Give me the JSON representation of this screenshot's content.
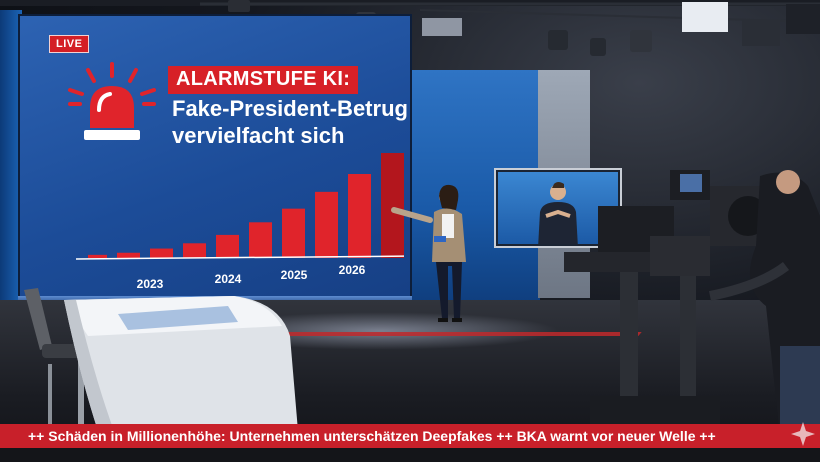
{
  "wall": {
    "live_badge": "LIVE",
    "headline_tag": "ALARMSTUFE KI:",
    "headline_line1": "Fake-President-Betrug",
    "headline_line2": "vervielfacht sich"
  },
  "chart_data": {
    "type": "bar",
    "title": "",
    "x_tick_labels": [
      "2023",
      "2024",
      "2025",
      "2026"
    ],
    "values": [
      3,
      5,
      9,
      14,
      22,
      34,
      47,
      63,
      80,
      100
    ],
    "ylim": [
      0,
      100
    ],
    "colors": {
      "bar": "#e0242b",
      "bar_highlight": "#b3161d",
      "axis": "#ffffff"
    }
  },
  "ticker": {
    "text": "++  Schäden in Millionenhöhe: Unternehmen unterschätzen Deepfakes  ++  BKA warnt vor neuer Welle  ++"
  },
  "colors": {
    "wall_blue": "#1c4c98",
    "accent_red": "#d72027",
    "ticker_red": "#c8202a"
  },
  "icons": {
    "siren": "alarm-siren-icon",
    "ticker_logo": "star-logo-icon"
  }
}
